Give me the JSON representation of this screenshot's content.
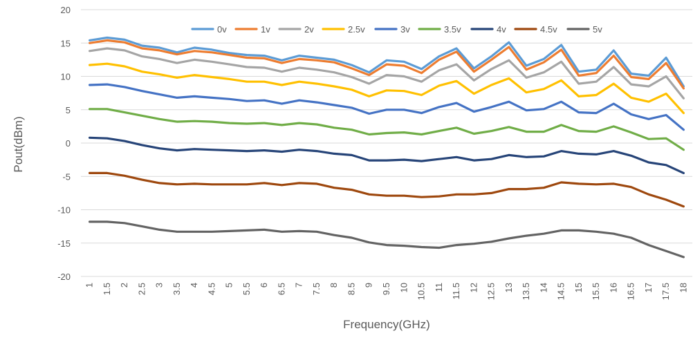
{
  "chart_data": {
    "type": "line",
    "title": "",
    "xlabel": "Frequency(GHz)",
    "ylabel": "Pout(dBm)",
    "ylim": [
      -20,
      20
    ],
    "yticks": [
      20,
      15,
      10,
      5,
      0,
      -5,
      -10,
      -15,
      -20
    ],
    "grid": true,
    "legend_position": "top",
    "categories": [
      "1",
      "1.5",
      "2",
      "2.5",
      "3",
      "3.5",
      "4",
      "4.5",
      "5",
      "5.5",
      "6",
      "6.5",
      "7",
      "7.5",
      "8",
      "8.5",
      "9",
      "9.5",
      "10",
      "10.5",
      "11",
      "11.5",
      "12",
      "12.5",
      "13",
      "13.5",
      "14",
      "14.5",
      "15",
      "15.5",
      "16",
      "16.5",
      "17",
      "17.5",
      "18"
    ],
    "series": [
      {
        "name": "0v",
        "color": "#5B9BD5",
        "values": [
          15.4,
          15.8,
          15.5,
          14.6,
          14.3,
          13.6,
          14.3,
          14.0,
          13.5,
          13.2,
          13.1,
          12.4,
          13.1,
          12.8,
          12.5,
          11.7,
          10.6,
          12.4,
          12.2,
          11.1,
          13.0,
          14.2,
          11.2,
          13.0,
          15.1,
          11.6,
          12.6,
          14.7,
          10.7,
          11.0,
          13.9,
          10.4,
          10.1,
          12.8,
          8.5
        ]
      },
      {
        "name": "1v",
        "color": "#ED7D31",
        "values": [
          15.0,
          15.4,
          15.1,
          14.2,
          13.9,
          13.3,
          13.8,
          13.6,
          13.2,
          12.8,
          12.7,
          12.0,
          12.6,
          12.4,
          12.1,
          11.2,
          10.2,
          11.8,
          11.6,
          10.5,
          12.5,
          13.7,
          10.7,
          12.5,
          14.4,
          11.0,
          12.1,
          14.0,
          10.1,
          10.5,
          13.1,
          9.9,
          9.6,
          12.0,
          8.2
        ]
      },
      {
        "name": "2v",
        "color": "#A5A5A5",
        "values": [
          13.8,
          14.2,
          13.9,
          13.0,
          12.6,
          12.0,
          12.5,
          12.2,
          11.8,
          11.4,
          11.3,
          10.7,
          11.3,
          11.0,
          10.6,
          9.9,
          8.9,
          10.2,
          10.0,
          9.2,
          10.9,
          11.8,
          9.4,
          11.1,
          12.4,
          9.8,
          10.6,
          12.2,
          8.9,
          9.2,
          11.4,
          8.8,
          8.5,
          10.0,
          6.7
        ]
      },
      {
        "name": "2.5v",
        "color": "#FFC000",
        "values": [
          11.7,
          11.9,
          11.5,
          10.7,
          10.3,
          9.8,
          10.2,
          9.9,
          9.6,
          9.2,
          9.2,
          8.7,
          9.2,
          8.9,
          8.5,
          8.0,
          7.0,
          7.9,
          7.8,
          7.2,
          8.6,
          9.3,
          7.4,
          8.7,
          9.7,
          7.6,
          8.1,
          9.4,
          7.0,
          7.2,
          8.9,
          6.8,
          6.2,
          7.4,
          4.5
        ]
      },
      {
        "name": "3v",
        "color": "#4472C4",
        "values": [
          8.7,
          8.8,
          8.4,
          7.8,
          7.3,
          6.8,
          7.0,
          6.8,
          6.6,
          6.3,
          6.4,
          5.9,
          6.4,
          6.1,
          5.7,
          5.3,
          4.4,
          5.0,
          5.0,
          4.5,
          5.4,
          6.0,
          4.7,
          5.4,
          6.2,
          4.9,
          5.1,
          6.2,
          4.6,
          4.5,
          5.9,
          4.3,
          3.6,
          4.2,
          2.0
        ]
      },
      {
        "name": "3.5v",
        "color": "#70AD47",
        "values": [
          5.1,
          5.1,
          4.6,
          4.1,
          3.6,
          3.2,
          3.3,
          3.2,
          3.0,
          2.9,
          3.0,
          2.7,
          3.0,
          2.8,
          2.3,
          2.0,
          1.3,
          1.5,
          1.6,
          1.3,
          1.8,
          2.3,
          1.4,
          1.8,
          2.4,
          1.7,
          1.7,
          2.7,
          1.8,
          1.7,
          2.5,
          1.6,
          0.6,
          0.7,
          -1.0
        ]
      },
      {
        "name": "4v",
        "color": "#264478",
        "values": [
          0.8,
          0.7,
          0.3,
          -0.3,
          -0.8,
          -1.1,
          -0.9,
          -1.0,
          -1.1,
          -1.2,
          -1.1,
          -1.3,
          -1.0,
          -1.2,
          -1.6,
          -1.8,
          -2.6,
          -2.6,
          -2.5,
          -2.7,
          -2.4,
          -2.1,
          -2.6,
          -2.4,
          -1.8,
          -2.1,
          -2.0,
          -1.2,
          -1.6,
          -1.7,
          -1.2,
          -1.9,
          -2.9,
          -3.3,
          -4.5
        ]
      },
      {
        "name": "4.5v",
        "color": "#9E480E",
        "values": [
          -4.5,
          -4.5,
          -4.9,
          -5.5,
          -6.0,
          -6.2,
          -6.1,
          -6.2,
          -6.2,
          -6.2,
          -6.0,
          -6.3,
          -6.0,
          -6.1,
          -6.7,
          -7.0,
          -7.7,
          -7.9,
          -7.9,
          -8.1,
          -8.0,
          -7.7,
          -7.7,
          -7.5,
          -6.9,
          -6.9,
          -6.7,
          -5.9,
          -6.1,
          -6.2,
          -6.1,
          -6.6,
          -7.7,
          -8.5,
          -9.5
        ]
      },
      {
        "name": "5v",
        "color": "#636363",
        "values": [
          -11.8,
          -11.8,
          -12.0,
          -12.5,
          -13.0,
          -13.3,
          -13.3,
          -13.3,
          -13.2,
          -13.1,
          -13.0,
          -13.3,
          -13.2,
          -13.3,
          -13.8,
          -14.2,
          -14.9,
          -15.3,
          -15.4,
          -15.6,
          -15.7,
          -15.3,
          -15.1,
          -14.8,
          -14.3,
          -13.9,
          -13.6,
          -13.1,
          -13.1,
          -13.3,
          -13.6,
          -14.2,
          -15.3,
          -16.2,
          -17.1
        ]
      }
    ]
  }
}
